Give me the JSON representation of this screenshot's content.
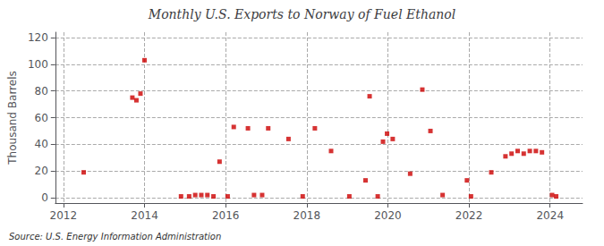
{
  "chart_data": {
    "type": "scatter",
    "title": "Monthly U.S. Exports to Norway of Fuel Ethanol",
    "ylabel": "Thousand Barrels",
    "source": "Source: U.S. Energy Information Administration",
    "color": "#cc0000",
    "marker": "square",
    "grid": true,
    "xlim": [
      2011.8,
      2024.8
    ],
    "ylim": [
      -4,
      124
    ],
    "xticks": [
      2012,
      2014,
      2016,
      2018,
      2020,
      2022,
      2024
    ],
    "yticks": [
      0,
      20,
      40,
      60,
      80,
      100,
      120
    ],
    "x": [
      2012.5,
      2013.7,
      2013.8,
      2013.9,
      2014.0,
      2014.9,
      2015.1,
      2015.25,
      2015.4,
      2015.55,
      2015.7,
      2015.85,
      2016.05,
      2016.2,
      2016.55,
      2016.7,
      2016.9,
      2017.05,
      2017.55,
      2017.9,
      2018.2,
      2018.6,
      2019.05,
      2019.45,
      2019.55,
      2019.75,
      2019.88,
      2019.98,
      2020.12,
      2020.55,
      2020.85,
      2021.05,
      2021.35,
      2021.95,
      2022.05,
      2022.55,
      2022.9,
      2023.05,
      2023.2,
      2023.35,
      2023.5,
      2023.65,
      2023.8,
      2024.05,
      2024.15
    ],
    "values": [
      19,
      75,
      73,
      78,
      103,
      1,
      1,
      2,
      2,
      2,
      1,
      27,
      1,
      53,
      52,
      2,
      2,
      52,
      44,
      1,
      52,
      35,
      1,
      13,
      76,
      1,
      42,
      48,
      44,
      18,
      81,
      50,
      2,
      13,
      1,
      19,
      31,
      33,
      35,
      33,
      35,
      35,
      34,
      2,
      1
    ]
  }
}
